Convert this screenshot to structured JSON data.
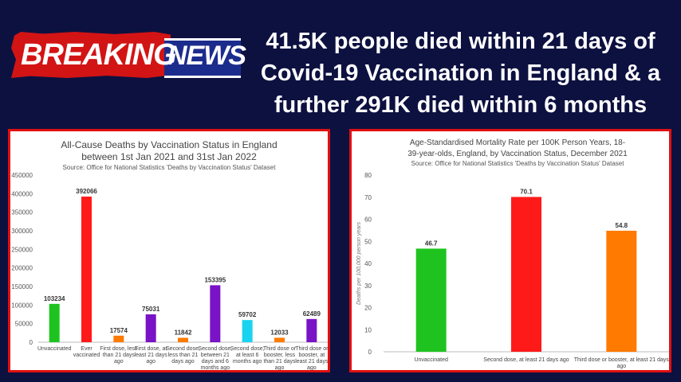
{
  "banner": {
    "word1": "BREAKING",
    "word2": "NEWS"
  },
  "headline": {
    "line1": "41.5K people died within 21 days of",
    "line2": "Covid-19 Vaccination in England & a",
    "line3": "further 291K died within 6 months"
  },
  "chart_data": [
    {
      "type": "bar",
      "title": "All-Cause Deaths by Vaccination Status in England",
      "title2": "between 1st Jan 2021 and 31st Jan 2022",
      "subtitle": "Source: Office for National Statistics 'Deaths by Vaccination Status' Dataset",
      "ylabel": "",
      "ylim": [
        0,
        450000
      ],
      "yticks": [
        "450000",
        "400000",
        "350000",
        "300000",
        "250000",
        "200000",
        "150000",
        "100000",
        "50000",
        "0"
      ],
      "grid": false,
      "categories": [
        [
          "Unvaccinated"
        ],
        [
          "Ever",
          "vaccinated"
        ],
        [
          "First dose, less",
          "than 21 days",
          "ago"
        ],
        [
          "First dose, at",
          "least 21 days",
          "ago"
        ],
        [
          "Second dose,",
          "less than 21",
          "days ago"
        ],
        [
          "Second dose,",
          "between 21",
          "days and 6",
          "months ago"
        ],
        [
          "Second dose,",
          "at least 6",
          "months ago"
        ],
        [
          "Third dose or",
          "booster, less",
          "than 21 days",
          "ago"
        ],
        [
          "Third dose or",
          "booster, at",
          "least 21 days",
          "ago"
        ]
      ],
      "values": [
        103234,
        392066,
        17574,
        75031,
        11842,
        153395,
        59702,
        12033,
        62489
      ],
      "value_labels": [
        "103234",
        "392066",
        "17574",
        "75031",
        "11842",
        "153395",
        "59702",
        "12033",
        "62489"
      ],
      "colors": [
        "#1fc31f",
        "#ff1a1a",
        "#ff7a00",
        "#7a12c6",
        "#ff7a00",
        "#7a12c6",
        "#1ad3f0",
        "#ff7a00",
        "#7a12c6"
      ]
    },
    {
      "type": "bar",
      "title": "Age-Standardised Mortality Rate per 100K Person Years, 18-",
      "title2": "39-year-olds, England, by Vaccination Status, December 2021",
      "subtitle": "Source: Office for National Statistics 'Deaths by Vaccination Status' Dataset",
      "ylabel": "Deaths per 100,000 person years",
      "ylim": [
        0,
        80
      ],
      "yticks": [
        "80",
        "70",
        "60",
        "50",
        "40",
        "30",
        "20",
        "10",
        "0"
      ],
      "grid": false,
      "categories": [
        [
          "Unvaccinated"
        ],
        [
          "Second dose, at least 21 days ago"
        ],
        [
          "Third dose or booster, at least 21 days",
          "ago"
        ]
      ],
      "values": [
        46.7,
        70.1,
        54.8
      ],
      "value_labels": [
        "46.7",
        "70.1",
        "54.8"
      ],
      "colors": [
        "#1fc31f",
        "#ff1a1a",
        "#ff7a00"
      ]
    }
  ]
}
